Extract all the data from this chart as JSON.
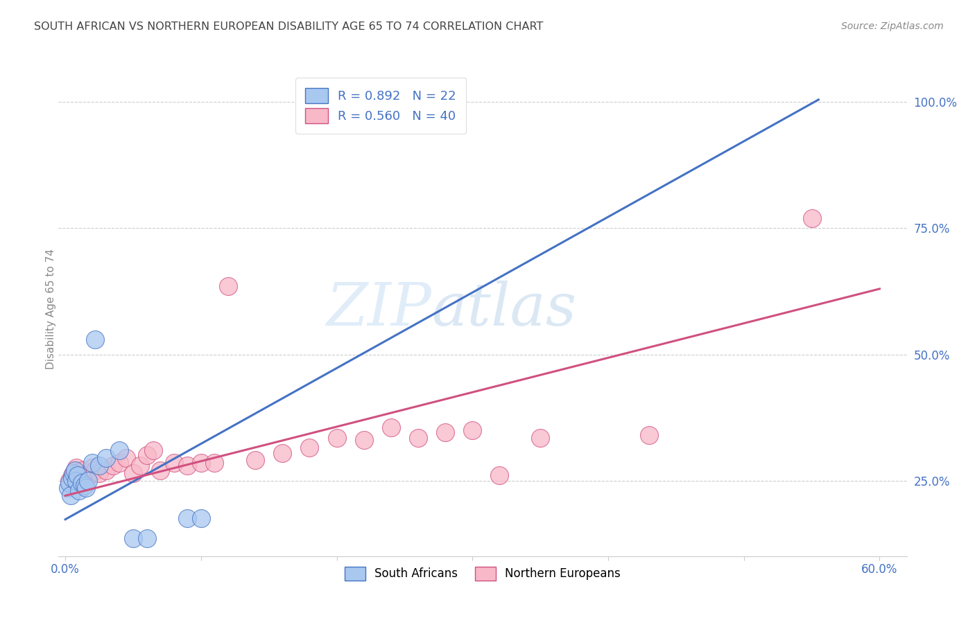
{
  "title": "SOUTH AFRICAN VS NORTHERN EUROPEAN DISABILITY AGE 65 TO 74 CORRELATION CHART",
  "source": "Source: ZipAtlas.com",
  "ylabel": "Disability Age 65 to 74",
  "blue_color": "#A8C8F0",
  "pink_color": "#F8B8C8",
  "blue_line_color": "#4472C4",
  "pink_line_color": "#D05080",
  "legend_blue_label": "R = 0.892   N = 22",
  "legend_pink_label": "R = 0.560   N = 40",
  "legend_bottom_blue": "South Africans",
  "legend_bottom_pink": "Northern Europeans",
  "watermark_zip": "ZIP",
  "watermark_atlas": "atlas",
  "xlim": [
    -0.005,
    0.62
  ],
  "ylim": [
    0.1,
    1.08
  ],
  "sa_x": [
    0.002,
    0.003,
    0.004,
    0.005,
    0.006,
    0.007,
    0.008,
    0.009,
    0.01,
    0.012,
    0.014,
    0.015,
    0.017,
    0.02,
    0.022,
    0.025,
    0.03,
    0.04,
    0.05,
    0.06,
    0.09,
    0.1
  ],
  "sa_y": [
    0.235,
    0.245,
    0.22,
    0.255,
    0.265,
    0.27,
    0.25,
    0.26,
    0.23,
    0.245,
    0.24,
    0.235,
    0.25,
    0.285,
    0.53,
    0.28,
    0.295,
    0.31,
    0.135,
    0.135,
    0.175,
    0.175
  ],
  "ne_x": [
    0.003,
    0.005,
    0.007,
    0.008,
    0.009,
    0.01,
    0.012,
    0.014,
    0.015,
    0.017,
    0.02,
    0.022,
    0.025,
    0.03,
    0.035,
    0.04,
    0.045,
    0.05,
    0.055,
    0.06,
    0.065,
    0.07,
    0.08,
    0.09,
    0.1,
    0.11,
    0.12,
    0.14,
    0.16,
    0.18,
    0.2,
    0.22,
    0.24,
    0.26,
    0.28,
    0.3,
    0.32,
    0.35,
    0.43,
    0.55
  ],
  "ne_y": [
    0.25,
    0.26,
    0.27,
    0.275,
    0.265,
    0.26,
    0.27,
    0.255,
    0.25,
    0.26,
    0.275,
    0.27,
    0.265,
    0.27,
    0.28,
    0.285,
    0.295,
    0.265,
    0.28,
    0.3,
    0.31,
    0.27,
    0.285,
    0.28,
    0.285,
    0.285,
    0.635,
    0.29,
    0.305,
    0.315,
    0.335,
    0.33,
    0.355,
    0.335,
    0.345,
    0.35,
    0.26,
    0.335,
    0.34,
    0.77
  ],
  "blue_regression_x0": 0.0,
  "blue_regression_y0": 0.173,
  "blue_regression_x1": 0.555,
  "blue_regression_y1": 1.005,
  "pink_regression_x0": 0.0,
  "pink_regression_y0": 0.22,
  "pink_regression_x1": 0.6,
  "pink_regression_y1": 0.63
}
